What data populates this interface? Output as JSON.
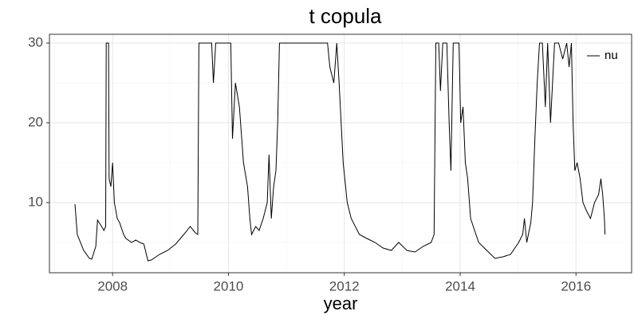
{
  "chart_data": {
    "type": "line",
    "title": "t copula",
    "x_label": "year",
    "x": [
      2007.35,
      2007.39,
      2007.5,
      2007.6,
      2007.64,
      2007.71,
      2007.74,
      2007.81,
      2007.85,
      2007.88,
      2007.89,
      2007.93,
      2007.94,
      2007.97,
      2008.0,
      2008.03,
      2008.08,
      2008.12,
      2008.19,
      2008.23,
      2008.33,
      2008.4,
      2008.47,
      2008.54,
      2008.61,
      2008.67,
      2008.81,
      2008.95,
      2009.09,
      2009.23,
      2009.34,
      2009.43,
      2009.47,
      2009.49,
      2009.57,
      2009.71,
      2009.74,
      2009.78,
      2009.98,
      2010.04,
      2010.07,
      2010.12,
      2010.19,
      2010.26,
      2010.33,
      2010.37,
      2010.4,
      2010.47,
      2010.53,
      2010.6,
      2010.67,
      2010.7,
      2010.74,
      2010.78,
      2010.82,
      2010.85,
      2010.88,
      2010.95,
      2011.57,
      2011.71,
      2011.75,
      2011.82,
      2011.87,
      2011.91,
      2011.98,
      2012.05,
      2012.12,
      2012.26,
      2012.39,
      2012.53,
      2012.67,
      2012.81,
      2012.94,
      2013.08,
      2013.22,
      2013.36,
      2013.5,
      2013.55,
      2013.58,
      2013.63,
      2013.66,
      2013.7,
      2013.77,
      2013.81,
      2013.84,
      2013.88,
      2013.98,
      2014.01,
      2014.05,
      2014.09,
      2014.13,
      2014.18,
      2014.32,
      2014.46,
      2014.6,
      2014.74,
      2014.87,
      2015.01,
      2015.08,
      2015.11,
      2015.15,
      2015.22,
      2015.25,
      2015.29,
      2015.33,
      2015.37,
      2015.42,
      2015.47,
      2015.51,
      2015.56,
      2015.63,
      2015.7,
      2015.77,
      2015.84,
      2015.88,
      2015.92,
      2015.95,
      2015.98,
      2016.02,
      2016.07,
      2016.12,
      2016.18,
      2016.25,
      2016.32,
      2016.39,
      2016.43,
      2016.46,
      2016.49,
      2016.5
    ],
    "series": [
      {
        "name": "nu",
        "color": "#000000",
        "values": [
          9.8,
          6,
          4,
          3,
          2.9,
          4.5,
          7.8,
          7,
          6.5,
          7,
          30,
          30,
          13,
          12,
          15,
          10,
          8,
          7.5,
          6,
          5.5,
          5,
          5.3,
          5,
          4.8,
          2.7,
          2.8,
          3.5,
          4,
          4.8,
          6,
          7,
          6.2,
          6,
          30,
          30,
          30,
          25,
          30,
          30,
          30,
          18,
          25,
          22,
          15,
          12,
          8,
          6,
          7,
          6.5,
          8,
          10,
          16,
          8,
          12,
          14,
          20,
          30,
          30,
          30,
          30,
          27,
          25,
          30,
          25,
          15,
          10,
          8,
          6,
          5.5,
          5,
          4.3,
          4,
          5,
          4,
          3.8,
          4.5,
          5,
          6,
          30,
          30,
          24,
          30,
          30,
          20,
          14,
          30,
          30,
          20,
          22,
          15,
          13,
          8,
          5,
          4,
          3,
          3.2,
          3.5,
          5,
          6,
          8,
          5,
          7.5,
          10,
          18,
          25,
          30,
          30,
          22,
          30,
          20,
          30,
          30,
          28,
          30,
          27,
          30,
          20,
          14,
          15,
          13,
          10,
          9,
          8,
          10,
          11,
          13,
          11,
          8,
          6
        ]
      }
    ],
    "xlim": [
      2006.91,
      2016.96
    ],
    "ylim": [
      1.2,
      31.1
    ],
    "xticks": [
      2008,
      2010,
      2012,
      2014,
      2016
    ],
    "yticks": [
      10,
      20,
      30
    ],
    "xminor": [
      2007,
      2009,
      2011,
      2013,
      2015
    ],
    "yminor": [
      5,
      15,
      25
    ],
    "grid": true,
    "legend": "top-right"
  }
}
